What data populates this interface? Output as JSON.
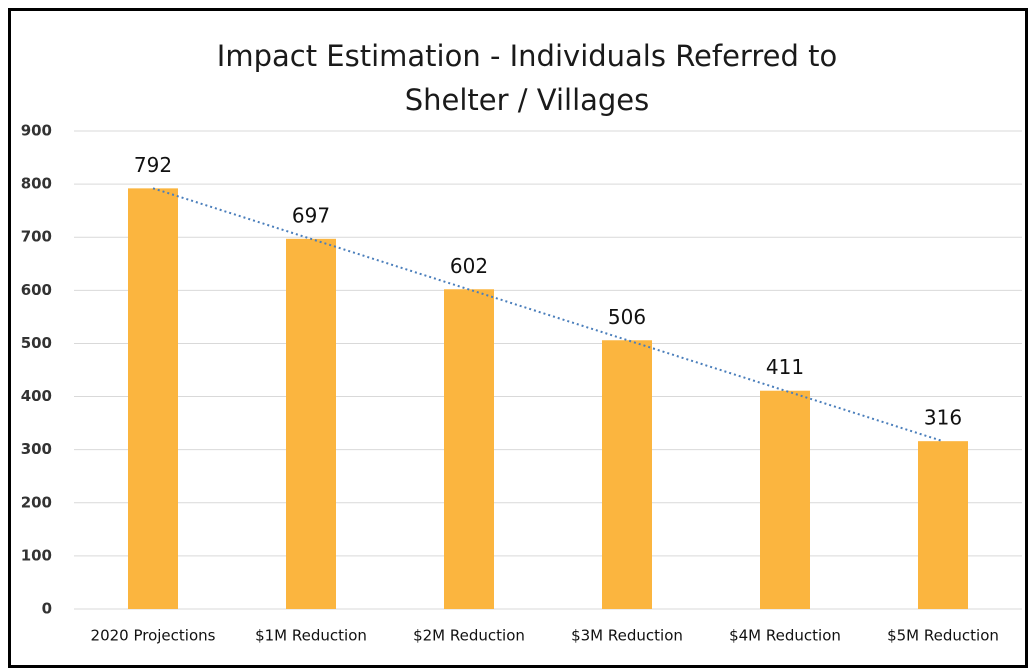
{
  "chart_data": {
    "type": "bar",
    "title": "Impact Estimation - Individuals Referred to Shelter / Villages",
    "categories": [
      "2020 Projections",
      "$1M Reduction",
      "$2M Reduction",
      "$3M Reduction",
      "$4M Reduction",
      "$5M Reduction"
    ],
    "values": [
      792,
      697,
      602,
      506,
      411,
      316
    ],
    "color": "#fbb53f",
    "ylim": [
      0,
      900
    ],
    "yticks": [
      0,
      100,
      200,
      300,
      400,
      500,
      600,
      700,
      800,
      900
    ],
    "grid": true,
    "trendline": {
      "type": "linear",
      "color": "#4a7ebb"
    }
  }
}
